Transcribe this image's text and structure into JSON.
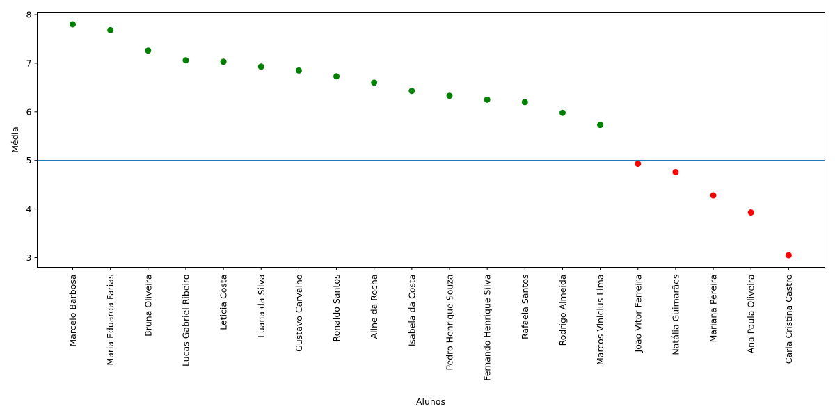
{
  "chart_data": {
    "type": "scatter",
    "title": "",
    "xlabel": "Alunos",
    "ylabel": "Média",
    "ylim": [
      2.8,
      8.05
    ],
    "yticks": [
      "3",
      "4",
      "5",
      "6",
      "7",
      "8"
    ],
    "ytick_values": [
      3,
      4,
      5,
      6,
      7,
      8
    ],
    "threshold": 5,
    "threshold_color": "#1f77b4",
    "pass_color": "#008000",
    "fail_color": "#ff0000",
    "grid": false,
    "categories": [
      "Marcelo Barbosa",
      "Maria Eduarda Farias",
      "Bruna Oliveira",
      "Lucas Gabriel Ribeiro",
      "Leticia Costa",
      "Luana da Silva",
      "Gustavo Carvalho",
      "Ronaldo Santos",
      "Aline da Rocha",
      "Isabela da Costa",
      "Pedro Henrique Souza",
      "Fernando Henrique Silva",
      "Rafaela Santos",
      "Rodrigo Almeida",
      "Marcos Vinicius Lima",
      "João Vitor Ferreira",
      "Natália Guimarães",
      "Mariana Pereira",
      "Ana Paula Oliveira",
      "Carla Cristina Castro"
    ],
    "values": [
      7.8,
      7.68,
      7.26,
      7.06,
      7.03,
      6.93,
      6.85,
      6.73,
      6.6,
      6.43,
      6.33,
      6.25,
      6.2,
      5.98,
      5.73,
      4.93,
      4.76,
      4.28,
      3.93,
      3.05
    ]
  }
}
